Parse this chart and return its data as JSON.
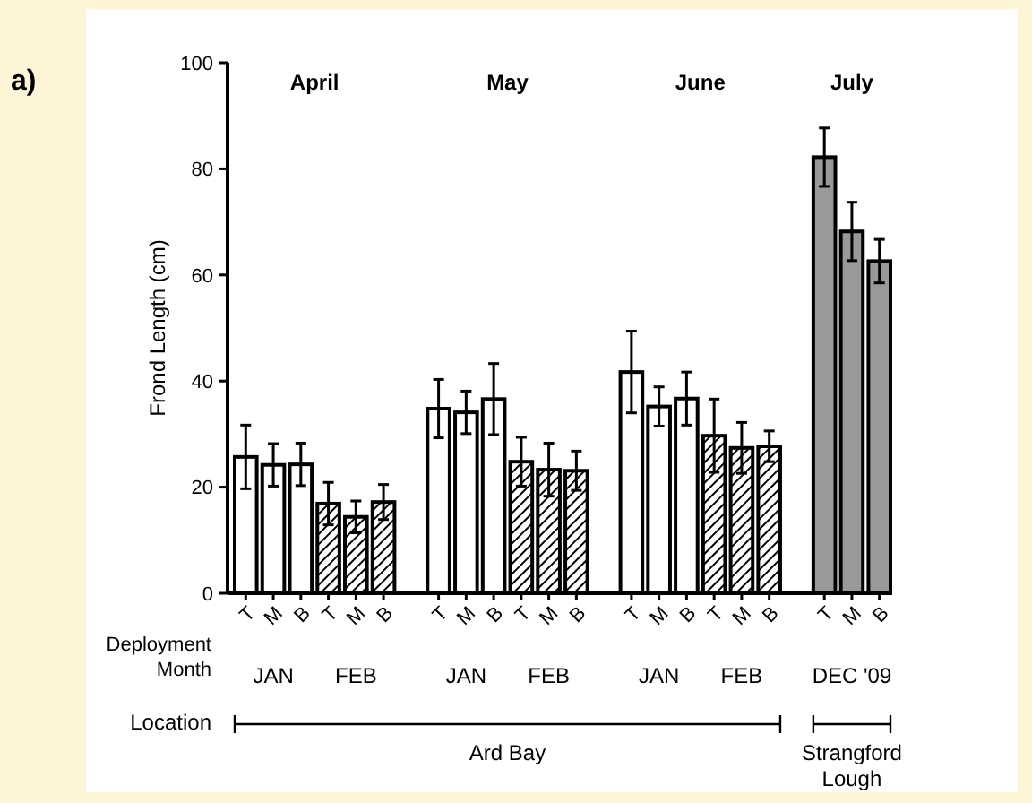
{
  "chart_data": {
    "type": "bar",
    "ylabel": "Frond Length (cm)",
    "categories": [
      "T",
      "M",
      "B",
      "T",
      "M",
      "B",
      null,
      "T",
      "M",
      "B",
      "T",
      "M",
      "B",
      null,
      "T",
      "M",
      "B",
      "T",
      "M",
      "B",
      null,
      "T",
      "M",
      "B"
    ],
    "series": [
      {
        "color": "#ffffff",
        "values": [
          25.7,
          24.2,
          24.3,
          null,
          null,
          null,
          null,
          34.8,
          34.1,
          36.6,
          null,
          null,
          null,
          null,
          41.7,
          35.2,
          36.7,
          null,
          null,
          null,
          null,
          null,
          null,
          null
        ],
        "errors": [
          6,
          4,
          4,
          null,
          null,
          null,
          null,
          5.5,
          4,
          6.7,
          null,
          null,
          null,
          null,
          7.7,
          3.7,
          5,
          null,
          null,
          null,
          null,
          null,
          null,
          null
        ]
      },
      {
        "color": "#000000",
        "values": [
          null,
          null,
          null,
          16.9,
          14.4,
          17.2,
          null,
          null,
          null,
          null,
          24.8,
          23.3,
          23.1,
          null,
          null,
          null,
          null,
          29.7,
          27.4,
          27.7,
          null,
          null,
          null,
          null
        ],
        "errors": [
          null,
          null,
          null,
          4,
          3,
          3.3,
          null,
          null,
          null,
          null,
          4.6,
          5,
          3.7,
          null,
          null,
          null,
          null,
          6.9,
          4.8,
          2.9,
          null,
          null,
          null,
          null
        ]
      },
      {
        "color": "#999999",
        "values": [
          null,
          null,
          null,
          null,
          null,
          null,
          null,
          null,
          null,
          null,
          null,
          null,
          null,
          null,
          null,
          null,
          null,
          null,
          null,
          null,
          null,
          82.2,
          68.2,
          62.6
        ],
        "errors": [
          null,
          null,
          null,
          null,
          null,
          null,
          null,
          null,
          null,
          null,
          null,
          null,
          null,
          null,
          null,
          null,
          null,
          null,
          null,
          null,
          null,
          5.5,
          5.5,
          4.1
        ]
      }
    ],
    "ylim": [
      0,
      100
    ],
    "yticks": [
      0,
      20,
      40,
      60,
      80,
      100
    ],
    "grid": false,
    "annotations": [
      "a)",
      "April",
      "May",
      "June",
      "July",
      "Deployment Month",
      "JAN",
      "FEB",
      "JAN",
      "FEB",
      "JAN",
      "FEB",
      "DEC '09",
      "Location",
      "Ard Bay",
      "Strangford Lough"
    ]
  }
}
